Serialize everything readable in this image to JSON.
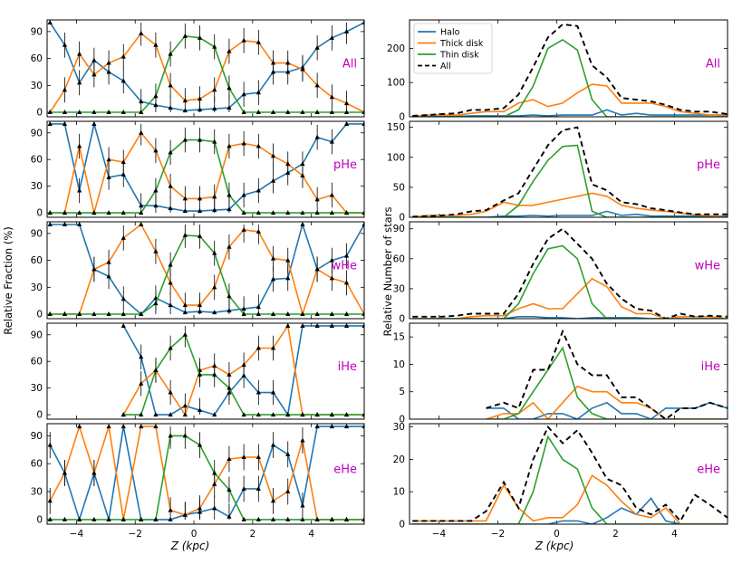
{
  "colors": {
    "halo": "#1f77b4",
    "thick": "#ff7f0e",
    "thin": "#2ca02c",
    "all": "#000000",
    "tag": "#bf00bf"
  },
  "shared": {
    "xlabel": "Z (kpc)",
    "xlim": [
      -5.0,
      5.8
    ],
    "x_ticks": [
      -4,
      -2,
      0,
      2,
      4
    ],
    "x_tick_labels": [
      "−4",
      "−2",
      "0",
      "2",
      "4"
    ],
    "z": [
      -4.9,
      -4.4,
      -3.9,
      -3.4,
      -2.9,
      -2.4,
      -1.8,
      -1.3,
      -0.8,
      -0.3,
      0.2,
      0.7,
      1.2,
      1.7,
      2.2,
      2.7,
      3.2,
      3.7,
      4.2,
      4.7,
      5.2,
      5.8
    ]
  },
  "left_panel": {
    "ylabel": "Relative Fraction  (%)",
    "y_ticks": [
      0,
      30,
      60,
      90
    ],
    "ylim": [
      -5,
      103
    ]
  },
  "right_panel": {
    "ylabel": "Relative Number of stars",
    "legend": [
      "Halo",
      "Thick disk",
      "Thin disk",
      "All"
    ]
  },
  "chart_data": [
    {
      "type": "line",
      "panel": "fraction",
      "tag": "All",
      "series": [
        {
          "name": "Halo",
          "values": [
            100,
            75,
            33,
            58,
            45,
            35,
            12,
            8,
            5,
            2,
            3,
            4,
            5,
            20,
            22,
            45,
            45,
            50,
            72,
            83,
            90,
            100
          ]
        },
        {
          "name": "Thick disk",
          "values": [
            0,
            25,
            65,
            42,
            55,
            62,
            88,
            75,
            30,
            13,
            15,
            25,
            68,
            80,
            78,
            55,
            55,
            48,
            30,
            17,
            10,
            0
          ]
        },
        {
          "name": "Thin disk",
          "values": [
            0,
            0,
            0,
            0,
            0,
            0,
            0,
            18,
            65,
            85,
            83,
            73,
            27,
            0,
            0,
            0,
            0,
            0,
            0,
            0,
            0,
            0
          ]
        }
      ]
    },
    {
      "type": "line",
      "panel": "fraction",
      "tag": "pHe",
      "series": [
        {
          "name": "Halo",
          "values": [
            100,
            100,
            25,
            100,
            40,
            43,
            8,
            8,
            5,
            2,
            2,
            3,
            4,
            20,
            25,
            36,
            45,
            55,
            85,
            80,
            100,
            100
          ]
        },
        {
          "name": "Thick disk",
          "values": [
            0,
            0,
            75,
            0,
            60,
            57,
            90,
            70,
            30,
            16,
            16,
            18,
            75,
            78,
            75,
            64,
            55,
            42,
            15,
            20,
            0,
            0
          ]
        },
        {
          "name": "Thin disk",
          "values": [
            0,
            0,
            0,
            0,
            0,
            0,
            0,
            25,
            68,
            82,
            82,
            80,
            20,
            0,
            0,
            0,
            0,
            0,
            0,
            0,
            0,
            0
          ]
        }
      ]
    },
    {
      "type": "line",
      "panel": "fraction",
      "tag": "wHe",
      "series": [
        {
          "name": "Halo",
          "values": [
            100,
            100,
            100,
            50,
            42,
            17,
            0,
            18,
            10,
            2,
            3,
            2,
            4,
            6,
            8,
            39,
            40,
            100,
            50,
            60,
            65,
            100
          ]
        },
        {
          "name": "Thick disk",
          "values": [
            0,
            0,
            0,
            50,
            58,
            85,
            100,
            70,
            35,
            10,
            10,
            30,
            75,
            94,
            92,
            62,
            60,
            0,
            50,
            40,
            35,
            0
          ]
        },
        {
          "name": "Thin disk",
          "values": [
            0,
            0,
            0,
            0,
            0,
            0,
            0,
            12,
            55,
            88,
            87,
            68,
            20,
            0,
            0,
            0,
            0,
            0,
            0,
            0,
            0,
            0
          ]
        }
      ]
    },
    {
      "type": "line",
      "panel": "fraction",
      "tag": "iHe",
      "series": [
        {
          "name": "Halo",
          "values": [
            null,
            null,
            null,
            null,
            null,
            100,
            65,
            0,
            0,
            10,
            5,
            0,
            25,
            44,
            25,
            25,
            0,
            100,
            100,
            100,
            100,
            100
          ]
        },
        {
          "name": "Thick disk",
          "values": [
            null,
            null,
            null,
            null,
            null,
            0,
            35,
            50,
            25,
            0,
            50,
            55,
            45,
            56,
            75,
            75,
            100,
            0,
            0,
            0,
            0,
            0
          ]
        },
        {
          "name": "Thin disk",
          "values": [
            null,
            null,
            null,
            null,
            null,
            0,
            0,
            50,
            75,
            90,
            45,
            45,
            30,
            0,
            0,
            0,
            0,
            0,
            0,
            0,
            0,
            0
          ]
        }
      ]
    },
    {
      "type": "line",
      "panel": "fraction",
      "tag": "eHe",
      "series": [
        {
          "name": "Halo",
          "values": [
            80,
            50,
            0,
            50,
            0,
            100,
            0,
            0,
            0,
            5,
            8,
            12,
            3,
            33,
            33,
            80,
            70,
            15,
            100,
            100,
            100,
            100
          ]
        },
        {
          "name": "Thick disk",
          "values": [
            20,
            50,
            100,
            50,
            100,
            0,
            100,
            100,
            10,
            5,
            12,
            38,
            65,
            67,
            67,
            20,
            30,
            85,
            0,
            0,
            0,
            0
          ]
        },
        {
          "name": "Thin disk",
          "values": [
            0,
            0,
            0,
            0,
            0,
            0,
            0,
            0,
            90,
            90,
            80,
            50,
            32,
            0,
            0,
            0,
            0,
            0,
            0,
            0,
            0,
            0
          ]
        }
      ]
    },
    {
      "type": "line",
      "panel": "number",
      "tag": "All",
      "y_ticks": [
        0,
        100,
        200
      ],
      "ylim": [
        0,
        283
      ],
      "series": [
        {
          "name": "Halo",
          "values": [
            1,
            1,
            1,
            1,
            3,
            3,
            3,
            3,
            5,
            3,
            5,
            5,
            5,
            20,
            5,
            10,
            5,
            5,
            5,
            5,
            5,
            5
          ]
        },
        {
          "name": "Thick disk",
          "values": [
            0,
            5,
            5,
            5,
            10,
            15,
            15,
            40,
            50,
            30,
            40,
            70,
            95,
            90,
            40,
            40,
            40,
            30,
            15,
            10,
            5,
            3
          ]
        },
        {
          "name": "Thin disk",
          "values": [
            0,
            0,
            0,
            0,
            0,
            0,
            0,
            20,
            90,
            200,
            225,
            195,
            50,
            0,
            0,
            0,
            0,
            0,
            0,
            0,
            0,
            0
          ]
        },
        {
          "name": "All",
          "values": [
            3,
            5,
            8,
            10,
            20,
            20,
            25,
            65,
            145,
            232,
            270,
            265,
            150,
            115,
            55,
            50,
            45,
            35,
            20,
            15,
            15,
            8
          ]
        }
      ]
    },
    {
      "type": "line",
      "panel": "number",
      "tag": "pHe",
      "y_ticks": [
        0,
        50,
        100,
        150
      ],
      "ylim": [
        0,
        160
      ],
      "series": [
        {
          "name": "Halo",
          "values": [
            0,
            0,
            0,
            0,
            0,
            0,
            2,
            2,
            3,
            2,
            3,
            3,
            3,
            10,
            3,
            5,
            2,
            2,
            2,
            2,
            2,
            2
          ]
        },
        {
          "name": "Thick disk",
          "values": [
            0,
            3,
            3,
            3,
            5,
            10,
            25,
            20,
            20,
            25,
            30,
            35,
            40,
            35,
            20,
            15,
            12,
            10,
            7,
            4,
            3,
            0
          ]
        },
        {
          "name": "Thin disk",
          "values": [
            0,
            0,
            0,
            0,
            0,
            0,
            0,
            20,
            60,
            95,
            118,
            120,
            10,
            0,
            0,
            0,
            0,
            0,
            0,
            0,
            0,
            0
          ]
        },
        {
          "name": "All",
          "values": [
            1,
            2,
            3,
            5,
            10,
            12,
            28,
            40,
            80,
            120,
            145,
            150,
            55,
            45,
            25,
            22,
            15,
            12,
            8,
            5,
            5,
            5
          ]
        }
      ]
    },
    {
      "type": "line",
      "panel": "number",
      "tag": "wHe",
      "y_ticks": [
        0,
        30,
        60,
        90
      ],
      "ylim": [
        0,
        97
      ],
      "series": [
        {
          "name": "Halo",
          "values": [
            0,
            0,
            0,
            0,
            0,
            0,
            0,
            2,
            2,
            1,
            1,
            0,
            1,
            1,
            1,
            1,
            0,
            0,
            0,
            0,
            0,
            0
          ]
        },
        {
          "name": "Thick disk",
          "values": [
            0,
            0,
            0,
            0,
            2,
            3,
            3,
            10,
            15,
            10,
            10,
            25,
            40,
            32,
            12,
            5,
            5,
            0,
            2,
            2,
            2,
            0
          ]
        },
        {
          "name": "Thin disk",
          "values": [
            0,
            0,
            0,
            0,
            0,
            0,
            0,
            15,
            45,
            70,
            73,
            60,
            15,
            0,
            0,
            0,
            0,
            0,
            0,
            0,
            0,
            0
          ]
        },
        {
          "name": "All",
          "values": [
            2,
            2,
            2,
            3,
            5,
            5,
            5,
            25,
            55,
            80,
            90,
            75,
            60,
            35,
            20,
            10,
            8,
            0,
            5,
            2,
            3,
            2
          ]
        }
      ]
    },
    {
      "type": "line",
      "panel": "number",
      "tag": "iHe",
      "y_ticks": [
        0,
        5,
        10,
        15
      ],
      "ylim": [
        0,
        17.5
      ],
      "series": [
        {
          "name": "Halo",
          "values": [
            null,
            null,
            null,
            null,
            null,
            2,
            2,
            0,
            0,
            1,
            1,
            0,
            2,
            3,
            1,
            1,
            0,
            2,
            2,
            2,
            3,
            2
          ]
        },
        {
          "name": "Thick disk",
          "values": [
            null,
            null,
            null,
            null,
            null,
            0,
            1,
            1,
            3,
            0,
            3,
            6,
            5,
            5,
            3,
            3,
            2,
            0,
            0,
            0,
            0,
            0
          ]
        },
        {
          "name": "Thin disk",
          "values": [
            null,
            null,
            null,
            null,
            null,
            0,
            0,
            1,
            5,
            9,
            13,
            4,
            1,
            0,
            0,
            0,
            0,
            0,
            0,
            0,
            0,
            0
          ]
        },
        {
          "name": "All",
          "values": [
            null,
            null,
            null,
            null,
            null,
            2,
            3,
            2,
            9,
            9,
            16,
            10,
            8,
            8,
            4,
            4,
            2,
            0,
            2,
            2,
            3,
            2
          ]
        }
      ]
    },
    {
      "type": "line",
      "panel": "number",
      "tag": "eHe",
      "y_ticks": [
        0,
        10,
        20,
        30
      ],
      "ylim": [
        0,
        31
      ],
      "series": [
        {
          "name": "Halo",
          "values": [
            0,
            0,
            0,
            0,
            0,
            0,
            0,
            0,
            0,
            0,
            1,
            1,
            0,
            2,
            5,
            3,
            8,
            1,
            0,
            0,
            0,
            0
          ]
        },
        {
          "name": "Thick disk",
          "values": [
            1,
            1,
            1,
            1,
            1,
            1,
            12,
            5,
            1,
            2,
            2,
            6,
            15,
            12,
            7,
            3,
            2,
            5,
            0,
            0,
            0,
            0
          ]
        },
        {
          "name": "Thin disk",
          "values": [
            0,
            0,
            0,
            0,
            0,
            0,
            0,
            0,
            10,
            27,
            20,
            17,
            5,
            0,
            0,
            0,
            0,
            0,
            0,
            0,
            0,
            0
          ]
        },
        {
          "name": "All",
          "values": [
            1,
            1,
            1,
            1,
            1,
            4,
            13,
            5,
            20,
            30,
            25,
            29,
            22,
            14,
            12,
            5,
            3,
            6,
            1,
            9,
            6,
            2
          ]
        }
      ]
    }
  ]
}
